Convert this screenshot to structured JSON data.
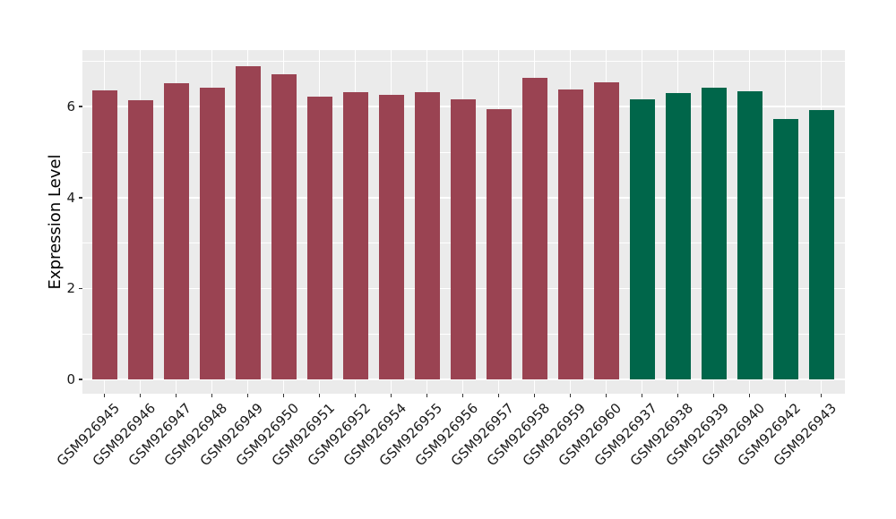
{
  "chart_data": {
    "type": "bar",
    "title": "",
    "xlabel": "",
    "ylabel": "Expression Level",
    "ylim": [
      0,
      7.25
    ],
    "yticks_major": [
      0,
      2,
      4,
      6
    ],
    "yticks_minor": [
      1,
      3,
      5,
      7
    ],
    "legend": "none",
    "grid": "white major and minor horizontal lines plus vertical line at each bar center on gray panel",
    "categories": [
      "GSM926945",
      "GSM926946",
      "GSM926947",
      "GSM926948",
      "GSM926949",
      "GSM926950",
      "GSM926951",
      "GSM926952",
      "GSM926954",
      "GSM926955",
      "GSM926956",
      "GSM926957",
      "GSM926958",
      "GSM926959",
      "GSM926960",
      "GSM926937",
      "GSM926938",
      "GSM926939",
      "GSM926940",
      "GSM926942",
      "GSM926943"
    ],
    "values": [
      6.36,
      6.15,
      6.52,
      6.42,
      6.89,
      6.72,
      6.23,
      6.32,
      6.26,
      6.31,
      6.16,
      5.94,
      6.63,
      6.38,
      6.54,
      6.16,
      6.3,
      6.42,
      6.34,
      5.73,
      5.93
    ],
    "bar_colors": [
      "#9A4352",
      "#9A4352",
      "#9A4352",
      "#9A4352",
      "#9A4352",
      "#9A4352",
      "#9A4352",
      "#9A4352",
      "#9A4352",
      "#9A4352",
      "#9A4352",
      "#9A4352",
      "#9A4352",
      "#9A4352",
      "#9A4352",
      "#00664A",
      "#00664A",
      "#00664A",
      "#00664A",
      "#00664A",
      "#00664A"
    ]
  },
  "colors": {
    "bar_red": "#9A4352",
    "bar_green": "#00664A",
    "panel_bg": "#EBEBEB",
    "gridline": "#FFFFFF",
    "tick_mark": "#333333",
    "tick_text": "#1A1A1A",
    "axis_title_text": "#000000",
    "figure_bg": "#FFFFFF"
  }
}
